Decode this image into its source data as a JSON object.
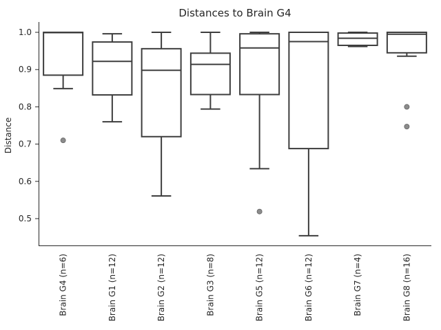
{
  "chart_data": {
    "type": "box",
    "title": "Distances to Brain G4",
    "ylabel": "Distance",
    "ylim": [
      0.42,
      1.03
    ],
    "yticks": [
      "0.5",
      "0.6",
      "0.7",
      "0.8",
      "0.9",
      "1.0"
    ],
    "grid": false,
    "groups": [
      {
        "label": "Brain G4 (n=6)",
        "whisker_low": 0.849,
        "q1": 0.885,
        "median": 0.999,
        "q3": 1.0,
        "whisker_high": 1.0,
        "outliers": [
          0.71
        ]
      },
      {
        "label": "Brain G1 (n=12)",
        "whisker_low": 0.76,
        "q1": 0.832,
        "median": 0.922,
        "q3": 0.974,
        "whisker_high": 0.996,
        "outliers": []
      },
      {
        "label": "Brain G2 (n=12)",
        "whisker_low": 0.561,
        "q1": 0.72,
        "median": 0.898,
        "q3": 0.956,
        "whisker_high": 1.0,
        "outliers": []
      },
      {
        "label": "Brain G3 (n=8)",
        "whisker_low": 0.794,
        "q1": 0.833,
        "median": 0.914,
        "q3": 0.944,
        "whisker_high": 1.0,
        "outliers": []
      },
      {
        "label": "Brain G5 (n=12)",
        "whisker_low": 0.634,
        "q1": 0.833,
        "median": 0.958,
        "q3": 0.996,
        "whisker_high": 1.0,
        "outliers": [
          0.519
        ]
      },
      {
        "label": "Brain G6 (n=12)",
        "whisker_low": 0.454,
        "q1": 0.688,
        "median": 0.975,
        "q3": 1.0,
        "whisker_high": 1.0,
        "outliers": []
      },
      {
        "label": "Brain G7 (n=4)",
        "whisker_low": 0.962,
        "q1": 0.965,
        "median": 0.984,
        "q3": 0.998,
        "whisker_high": 1.0,
        "outliers": []
      },
      {
        "label": "Brain G8 (n=16)",
        "whisker_low": 0.936,
        "q1": 0.945,
        "median": 0.995,
        "q3": 1.0,
        "whisker_high": 1.0,
        "outliers": [
          0.8,
          0.747
        ]
      }
    ]
  }
}
